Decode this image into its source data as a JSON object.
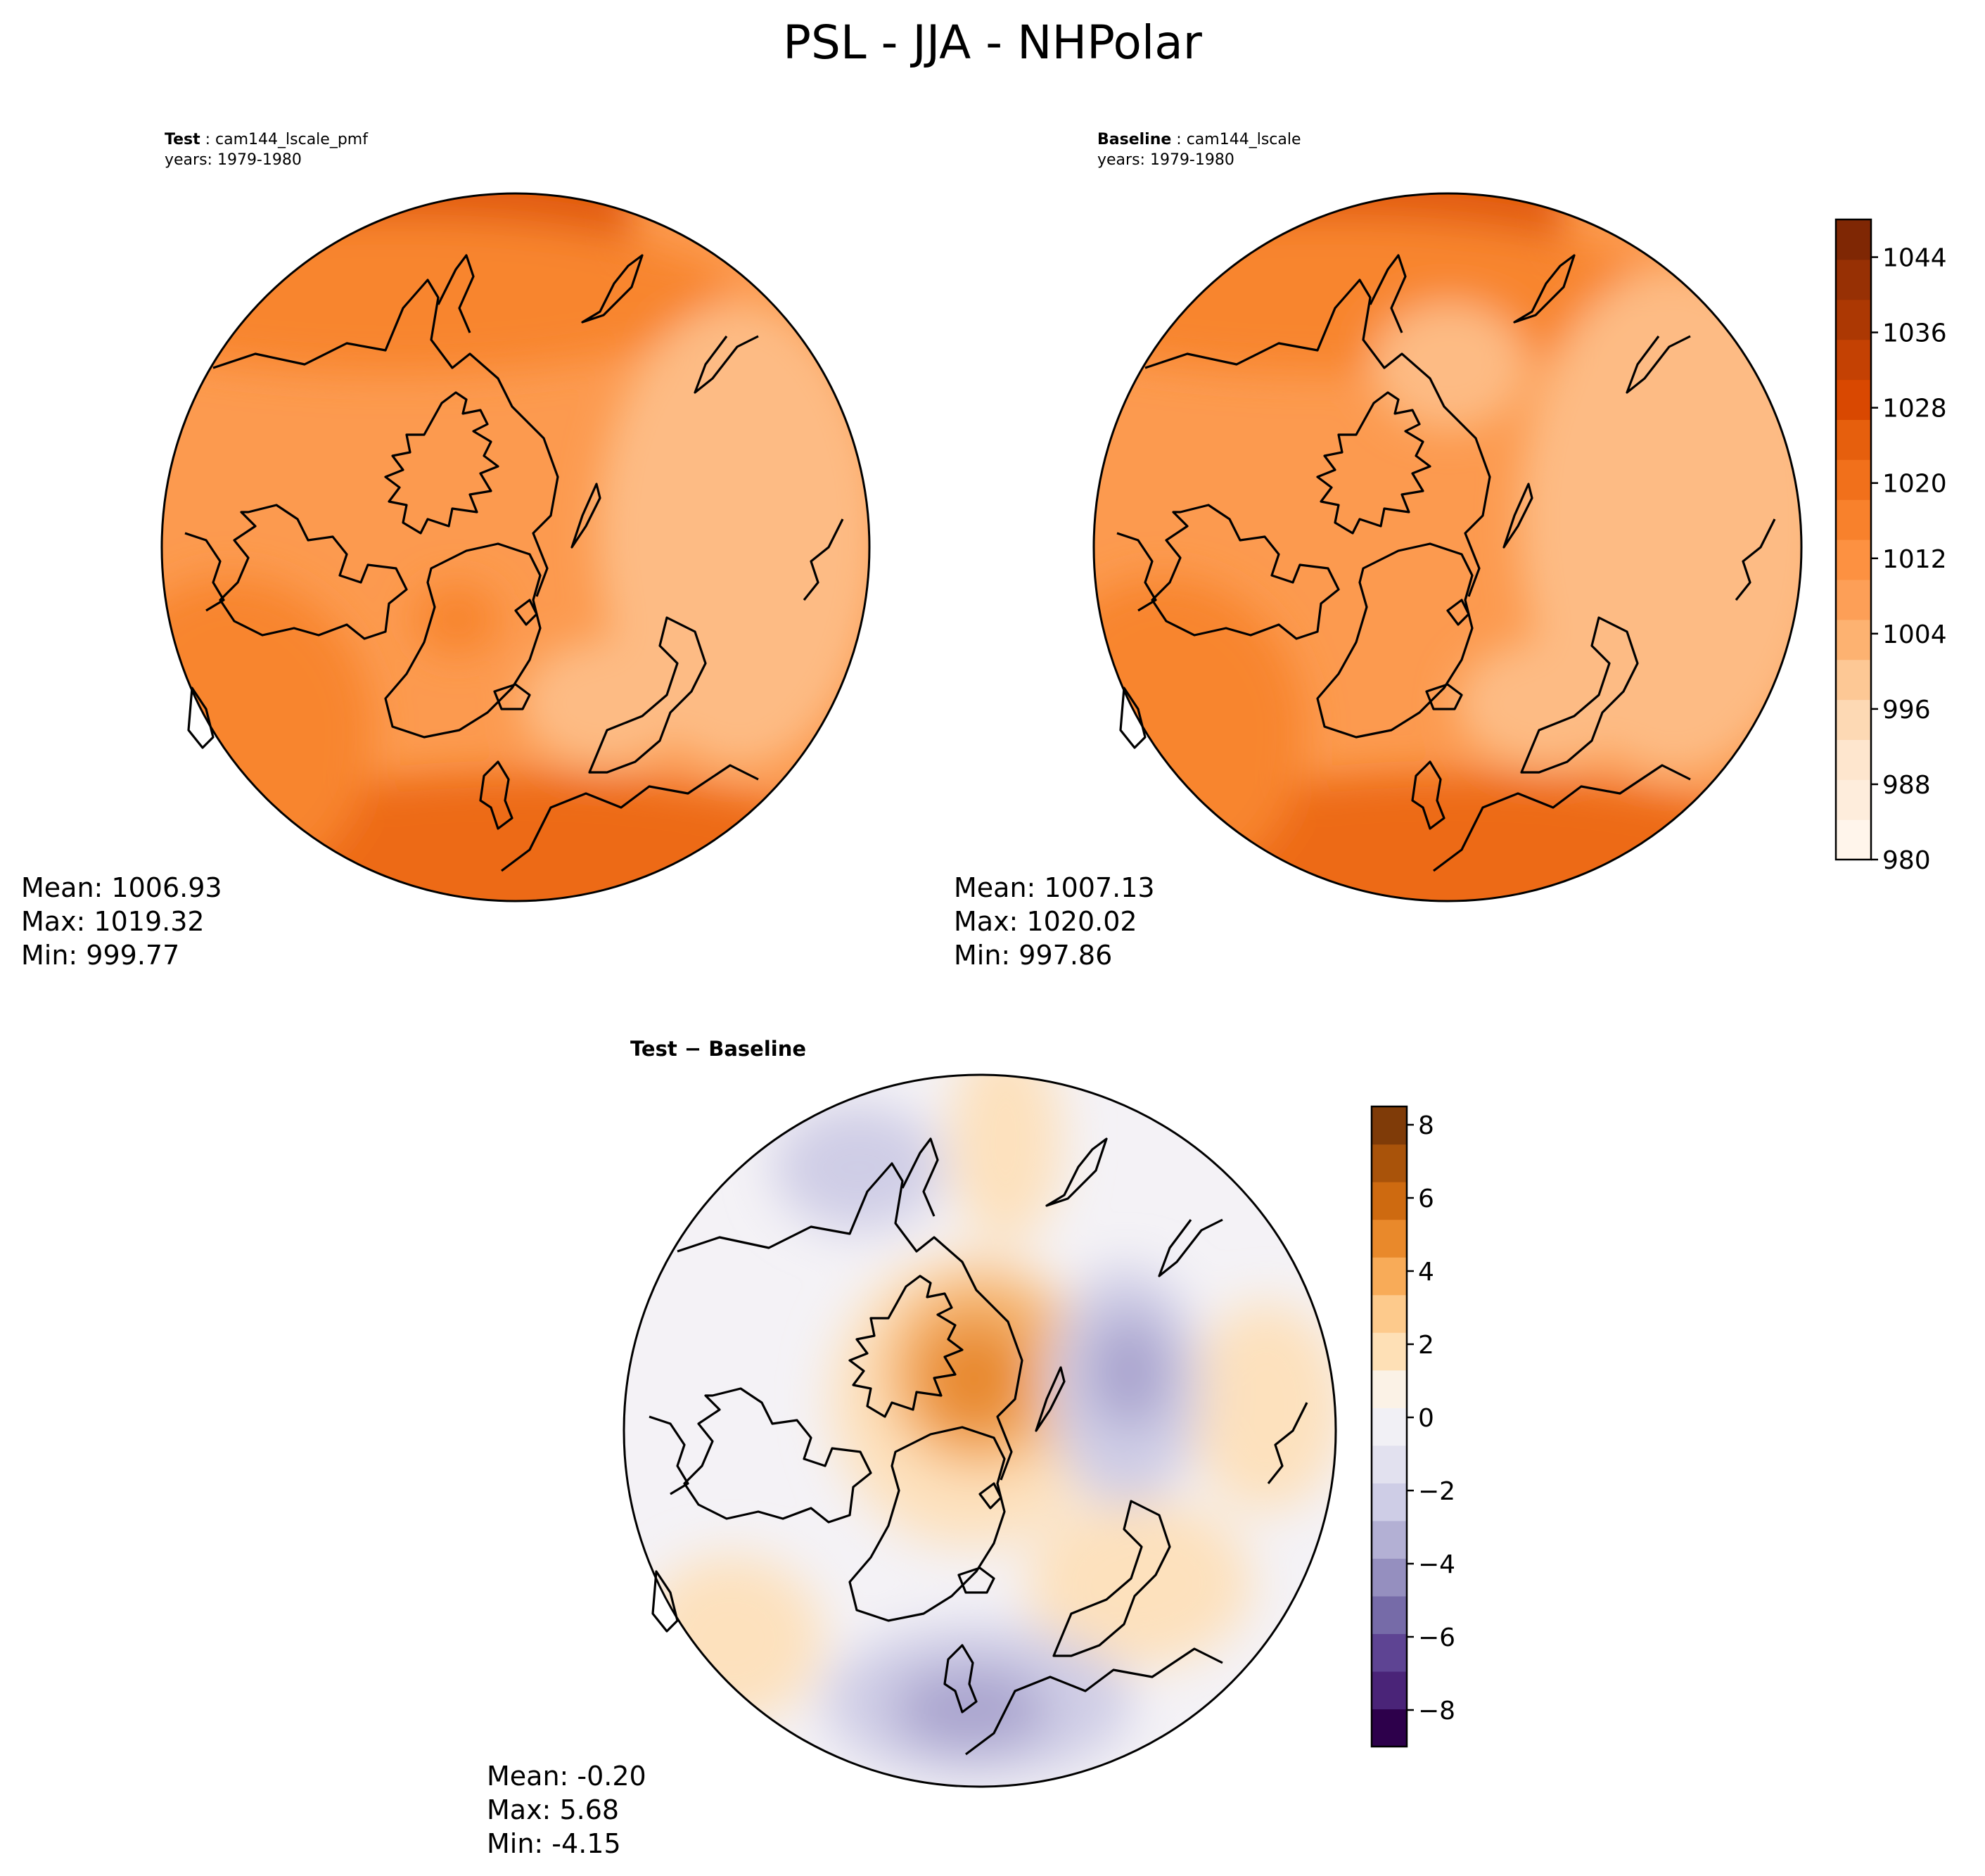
{
  "figure_title": "PSL - JJA - NHPolar",
  "panels": {
    "test": {
      "case_label": "Test",
      "case_name": "cam144_lscale_pmf",
      "years": "years: 1979-1980",
      "stats": {
        "mean": "Mean: 1006.93",
        "max": "Max: 1019.32",
        "min": "Min: 999.77"
      }
    },
    "baseline": {
      "case_label": "Baseline",
      "case_name": "cam144_lscale",
      "years": "years: 1979-1980",
      "stats": {
        "mean": "Mean: 1007.13",
        "max": "Max: 1020.02",
        "min": "Min: 997.86"
      }
    },
    "difference": {
      "title": "Test − Baseline",
      "stats": {
        "mean": "Mean: -0.20",
        "max": "Max:  5.68",
        "min": "Min: -4.15"
      }
    }
  },
  "colorbars": {
    "main": {
      "colormap": "Oranges",
      "min": 980,
      "max": 1048,
      "step": 4,
      "ticks": [
        "980",
        "988",
        "996",
        "1004",
        "1012",
        "1020",
        "1028",
        "1036",
        "1044"
      ],
      "colors": [
        "#fff5eb",
        "#feeddc",
        "#fee6ce",
        "#fdd9b4",
        "#fdc895",
        "#fdb271",
        "#fd9f57",
        "#fd9141",
        "#f8812c",
        "#f1701b",
        "#e65f0d",
        "#d94801",
        "#c44103",
        "#ac3803",
        "#973004",
        "#7f2704"
      ]
    },
    "diff": {
      "colormap": "PuOr_r",
      "min": -9,
      "max": 8.5,
      "ticks": [
        "−8",
        "−6",
        "−4",
        "−2",
        "0",
        "2",
        "4",
        "6",
        "8"
      ],
      "tick_values": [
        -8,
        -6,
        -4,
        -2,
        0,
        2,
        4,
        6,
        8
      ],
      "colors": [
        "#2d004b",
        "#4a2478",
        "#5e4493",
        "#766ba8",
        "#958fbf",
        "#b3b0d4",
        "#cecde6",
        "#e2e1ef",
        "#f1f0f5",
        "#fbf2e6",
        "#fee0b6",
        "#fdca8c",
        "#f8ab58",
        "#e9892b",
        "#ce6a10",
        "#a9530a",
        "#7f3b08"
      ]
    }
  },
  "map_colors": {
    "test": {
      "base": "#fc9a4f",
      "light": "#fdbb84",
      "mid": "#f8852f",
      "dark": "#ed6a16",
      "darker": "#e25b0b"
    },
    "baseline": {
      "base": "#fc9a4f",
      "light": "#fdbb84",
      "mid": "#f8852f",
      "dark": "#ed6a16",
      "darker": "#e25b0b"
    },
    "difference": {
      "base": "#f4f2f6",
      "orange_center": "#e8892e",
      "orange_mid": "#f5b36a",
      "orange_light": "#fde1bd",
      "purple_light": "#cfcde6",
      "purple_mid": "#aaa5cf"
    }
  }
}
